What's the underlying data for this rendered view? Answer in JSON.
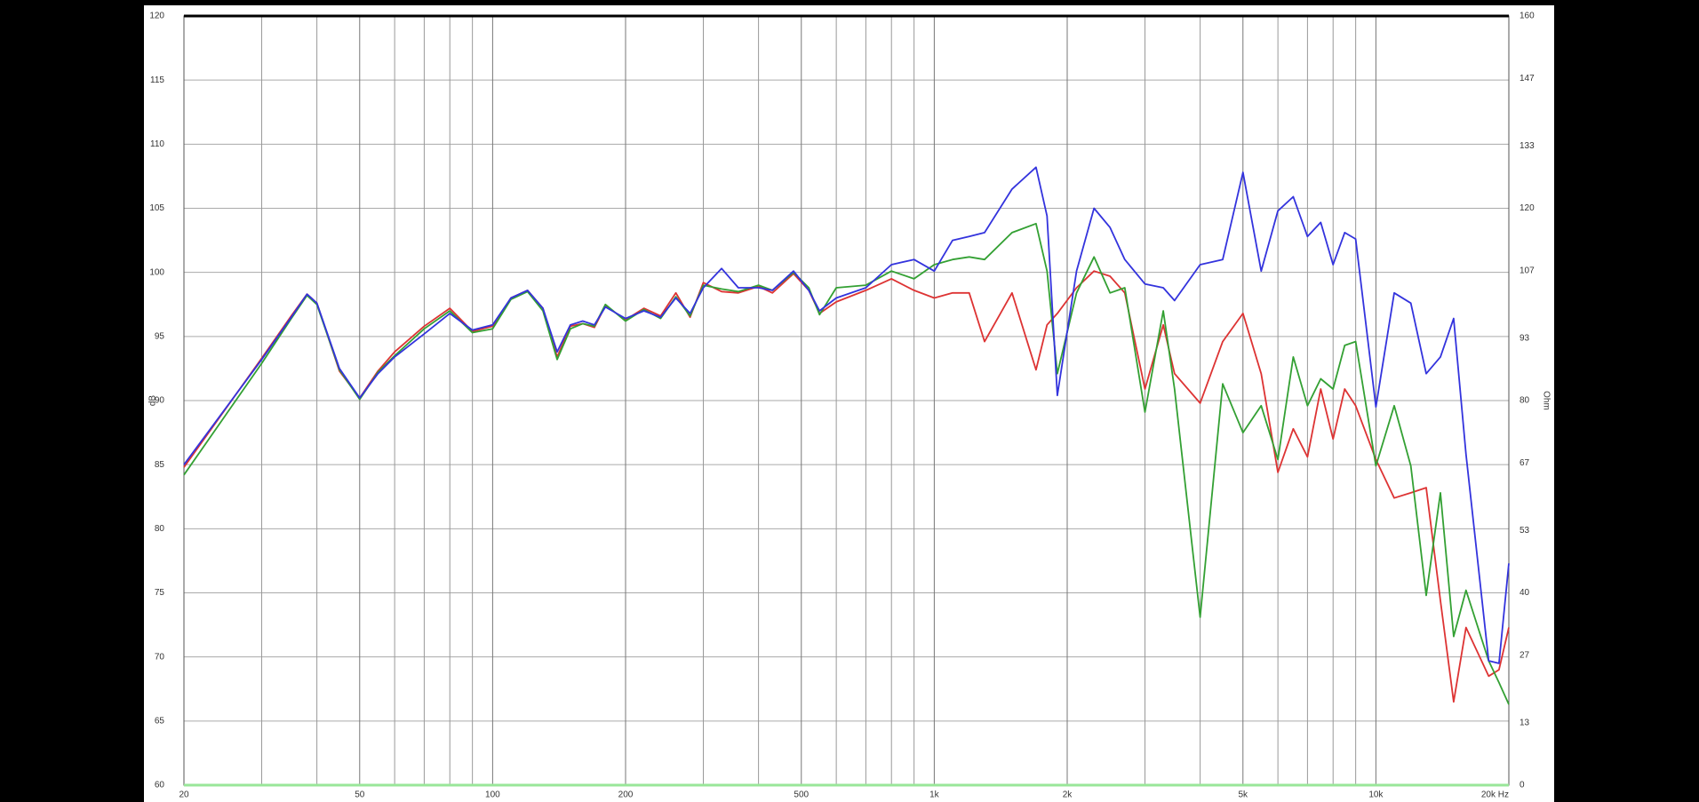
{
  "chart_data": {
    "type": "line",
    "x": [
      20,
      30,
      35,
      38,
      40,
      45,
      50,
      55,
      60,
      70,
      80,
      90,
      100,
      110,
      120,
      130,
      140,
      150,
      160,
      170,
      180,
      200,
      220,
      240,
      260,
      280,
      300,
      330,
      360,
      400,
      430,
      480,
      520,
      550,
      600,
      700,
      800,
      900,
      1000,
      1100,
      1200,
      1300,
      1500,
      1700,
      1800,
      1900,
      2100,
      2300,
      2500,
      2700,
      3000,
      3300,
      3500,
      4000,
      4500,
      5000,
      5500,
      6000,
      6500,
      7000,
      7500,
      8000,
      8500,
      9000,
      10000,
      11000,
      12000,
      13000,
      14000,
      15000,
      16000,
      18000,
      19000,
      20000
    ],
    "series": [
      {
        "color": "#dd3333",
        "values": [
          84.8,
          93.3,
          96.6,
          98.3,
          97.6,
          92.3,
          90.2,
          92.3,
          93.8,
          95.8,
          97.2,
          95.4,
          95.8,
          98,
          98.6,
          97.2,
          93.4,
          95.8,
          96,
          95.7,
          97.4,
          96.3,
          97.2,
          96.6,
          98.4,
          96.5,
          99.2,
          98.5,
          98.4,
          98.9,
          98.4,
          99.9,
          98.6,
          96.8,
          97.7,
          98.6,
          99.5,
          98.6,
          98,
          98.4,
          98.4,
          94.6,
          98.4,
          92.4,
          95.9,
          96.8,
          98.8,
          100.1,
          99.7,
          98.4,
          90.9,
          95.9,
          92.1,
          89.8,
          94.6,
          96.8,
          92.1,
          84.4,
          87.8,
          85.6,
          90.9,
          87,
          90.9,
          89.6,
          85.4,
          82.4,
          82.8,
          83.2,
          74.4,
          66.5,
          72.3,
          68.5,
          69,
          72.3
        ]
      },
      {
        "color": "#33a033",
        "values": [
          84.2,
          92.9,
          96.4,
          98.2,
          97.5,
          92.4,
          90.1,
          92.2,
          93.5,
          95.6,
          97,
          95.3,
          95.6,
          97.9,
          98.5,
          97,
          93.2,
          95.6,
          96,
          95.8,
          97.5,
          96.2,
          97.1,
          96.4,
          98.1,
          96.6,
          99,
          98.7,
          98.5,
          99,
          98.6,
          100,
          98.8,
          96.7,
          98.8,
          99,
          100.1,
          99.5,
          100.6,
          101,
          101.2,
          101,
          103.1,
          103.8,
          100.1,
          92.1,
          98.4,
          101.2,
          98.4,
          98.8,
          89.1,
          97,
          90.9,
          73.1,
          91.3,
          87.5,
          89.6,
          85.4,
          93.4,
          89.6,
          91.7,
          90.9,
          94.3,
          94.6,
          84.9,
          89.6,
          84.9,
          74.8,
          82.8,
          71.6,
          75.2,
          69.7,
          68,
          66.3
        ]
      },
      {
        "color": "#3333dd",
        "values": [
          85,
          93.2,
          96.5,
          98.3,
          97.6,
          92.5,
          90.2,
          92.1,
          93.4,
          95.2,
          96.8,
          95.5,
          95.9,
          98,
          98.6,
          97.2,
          93.8,
          95.9,
          96.2,
          95.9,
          97.3,
          96.4,
          97,
          96.5,
          98,
          96.8,
          98.8,
          100.3,
          98.8,
          98.8,
          98.6,
          100.1,
          98.6,
          97,
          98,
          98.8,
          100.6,
          101,
          100.1,
          102.5,
          102.8,
          103.1,
          106.5,
          108.2,
          104.4,
          90.4,
          100.1,
          105,
          103.5,
          101,
          99.1,
          98.8,
          97.8,
          100.6,
          101,
          107.8,
          100.1,
          104.8,
          105.9,
          102.8,
          103.9,
          100.6,
          103.1,
          102.6,
          89.5,
          98.4,
          97.6,
          92.1,
          93.4,
          96.4,
          85.8,
          69.7,
          69.5,
          77.3
        ]
      },
      {
        "color": "#99e699",
        "axis": "y2",
        "values": [
          0,
          0,
          0,
          0,
          0,
          0,
          0,
          0,
          0,
          0,
          0,
          0,
          0,
          0,
          0,
          0,
          0,
          0,
          0,
          0,
          0,
          0,
          0,
          0,
          0,
          0,
          0,
          0,
          0,
          0,
          0,
          0,
          0,
          0,
          0,
          0,
          0,
          0,
          0,
          0,
          0,
          0,
          0,
          0,
          0,
          0,
          0,
          0,
          0,
          0,
          0,
          0,
          0,
          0,
          0,
          0,
          0,
          0,
          0,
          0,
          0,
          0,
          0,
          0,
          0,
          0,
          0,
          0,
          0,
          0,
          0,
          0,
          0,
          0
        ]
      }
    ],
    "xlog": true,
    "xlim": [
      20,
      20000
    ],
    "xticks": [
      20,
      50,
      100,
      200,
      500,
      {
        "value": 1000,
        "label": "1k"
      },
      {
        "value": 2000,
        "label": "2k"
      },
      {
        "value": 5000,
        "label": "5k"
      },
      {
        "value": 10000,
        "label": "10k"
      },
      {
        "value": 20000,
        "label": "20k Hz"
      }
    ],
    "xminor": [
      30,
      40,
      60,
      70,
      80,
      90,
      300,
      400,
      600,
      700,
      800,
      900,
      3000,
      4000,
      6000,
      7000,
      8000,
      9000
    ],
    "ylim": [
      60,
      120
    ],
    "yticks": [
      60,
      65,
      70,
      75,
      80,
      85,
      90,
      95,
      100,
      105,
      110,
      115,
      120
    ],
    "y2lim": [
      0,
      160
    ],
    "y2ticks": [
      0,
      13,
      27,
      40,
      53,
      67,
      80,
      93,
      107,
      120,
      133,
      147,
      160
    ],
    "ylabel": "dB",
    "y2label": "Ohm",
    "grid": true
  }
}
